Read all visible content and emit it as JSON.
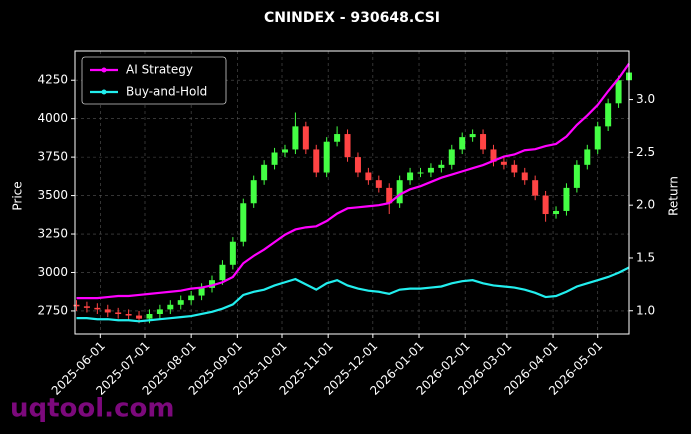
{
  "chart_data": {
    "type": "candlestick",
    "title": "CNINDEX - 930648.CSI",
    "y_label": "Price",
    "y2_label": "Return",
    "watermark": "uqtool.com",
    "x": [
      "2025-05-16",
      "2025-05-23",
      "2025-05-30",
      "2025-06-06",
      "2025-06-13",
      "2025-06-20",
      "2025-06-27",
      "2025-07-04",
      "2025-07-11",
      "2025-07-18",
      "2025-07-25",
      "2025-08-01",
      "2025-08-08",
      "2025-08-15",
      "2025-08-22",
      "2025-08-29",
      "2025-09-05",
      "2025-09-12",
      "2025-09-19",
      "2025-09-26",
      "2025-10-03",
      "2025-10-10",
      "2025-10-17",
      "2025-10-24",
      "2025-10-31",
      "2025-11-07",
      "2025-11-14",
      "2025-11-21",
      "2025-11-28",
      "2025-12-05",
      "2025-12-12",
      "2025-12-19",
      "2025-12-26",
      "2026-01-02",
      "2026-01-09",
      "2026-01-16",
      "2026-01-23",
      "2026-01-30",
      "2026-02-06",
      "2026-02-13",
      "2026-02-20",
      "2026-02-27",
      "2026-03-06",
      "2026-03-13",
      "2026-03-20",
      "2026-03-27",
      "2026-04-03",
      "2026-04-10",
      "2026-04-17",
      "2026-04-24",
      "2026-05-01",
      "2026-05-08",
      "2026-05-15",
      "2026-05-22"
    ],
    "open": [
      2790,
      2780,
      2770,
      2760,
      2740,
      2730,
      2720,
      2700,
      2730,
      2760,
      2790,
      2820,
      2850,
      2900,
      2950,
      3050,
      3200,
      3450,
      3600,
      3700,
      3780,
      3800,
      3950,
      3800,
      3650,
      3850,
      3900,
      3750,
      3650,
      3600,
      3550,
      3450,
      3600,
      3650,
      3650,
      3680,
      3700,
      3800,
      3880,
      3900,
      3800,
      3720,
      3700,
      3650,
      3600,
      3500,
      3380,
      3400,
      3550,
      3700,
      3800,
      3950,
      4100,
      4250
    ],
    "high": [
      2820,
      2810,
      2800,
      2790,
      2770,
      2760,
      2750,
      2760,
      2790,
      2820,
      2850,
      2880,
      2930,
      2980,
      3080,
      3230,
      3480,
      3630,
      3730,
      3810,
      3830,
      4040,
      3980,
      3830,
      3880,
      3950,
      3930,
      3780,
      3680,
      3630,
      3580,
      3630,
      3680,
      3680,
      3710,
      3730,
      3830,
      3910,
      3930,
      3930,
      3830,
      3750,
      3730,
      3680,
      3630,
      3530,
      3430,
      3580,
      3730,
      3830,
      3980,
      4130,
      4280,
      4350
    ],
    "low": [
      2750,
      2740,
      2730,
      2710,
      2700,
      2690,
      2670,
      2670,
      2700,
      2730,
      2760,
      2790,
      2820,
      2870,
      2920,
      3020,
      3170,
      3420,
      3570,
      3670,
      3750,
      3770,
      3770,
      3620,
      3620,
      3820,
      3720,
      3620,
      3570,
      3520,
      3380,
      3420,
      3570,
      3620,
      3620,
      3650,
      3670,
      3770,
      3850,
      3770,
      3690,
      3670,
      3620,
      3570,
      3470,
      3330,
      3350,
      3370,
      3520,
      3670,
      3770,
      3920,
      4070,
      4100
    ],
    "close": [
      2780,
      2770,
      2760,
      2740,
      2730,
      2720,
      2700,
      2730,
      2760,
      2790,
      2820,
      2850,
      2900,
      2950,
      3050,
      3200,
      3450,
      3600,
      3700,
      3780,
      3800,
      3950,
      3800,
      3650,
      3850,
      3900,
      3750,
      3650,
      3600,
      3550,
      3450,
      3600,
      3650,
      3650,
      3680,
      3700,
      3800,
      3880,
      3900,
      3800,
      3720,
      3700,
      3650,
      3600,
      3500,
      3380,
      3400,
      3550,
      3700,
      3800,
      3950,
      4100,
      4250,
      4300
    ],
    "up_color": "#44ff44",
    "down_color": "#ff4444",
    "series": [
      {
        "name": "AI Strategy",
        "color": "#ff00ff",
        "axis": "y2",
        "values": [
          1.12,
          1.12,
          1.12,
          1.13,
          1.14,
          1.14,
          1.15,
          1.16,
          1.17,
          1.18,
          1.19,
          1.21,
          1.22,
          1.24,
          1.27,
          1.32,
          1.45,
          1.52,
          1.58,
          1.65,
          1.72,
          1.77,
          1.79,
          1.8,
          1.85,
          1.92,
          1.97,
          1.98,
          1.99,
          2.0,
          2.02,
          2.1,
          2.15,
          2.18,
          2.22,
          2.26,
          2.29,
          2.32,
          2.35,
          2.38,
          2.42,
          2.46,
          2.48,
          2.52,
          2.53,
          2.56,
          2.58,
          2.65,
          2.76,
          2.85,
          2.95,
          3.08,
          3.2,
          3.34
        ]
      },
      {
        "name": "Buy-and-Hold",
        "color": "#22eeee",
        "axis": "y2",
        "values": [
          0.93,
          0.93,
          0.92,
          0.92,
          0.91,
          0.91,
          0.9,
          0.91,
          0.92,
          0.93,
          0.94,
          0.95,
          0.97,
          0.99,
          1.02,
          1.06,
          1.15,
          1.18,
          1.2,
          1.24,
          1.27,
          1.3,
          1.25,
          1.2,
          1.26,
          1.29,
          1.24,
          1.21,
          1.19,
          1.18,
          1.16,
          1.2,
          1.21,
          1.21,
          1.22,
          1.23,
          1.26,
          1.28,
          1.29,
          1.26,
          1.24,
          1.23,
          1.22,
          1.2,
          1.17,
          1.13,
          1.14,
          1.18,
          1.23,
          1.26,
          1.29,
          1.32,
          1.36,
          1.41
        ]
      }
    ],
    "xlim": [
      "2025-05-15",
      "2026-05-22"
    ],
    "xticks": [
      "2025-06-01",
      "2025-07-01",
      "2025-08-01",
      "2025-09-01",
      "2025-10-01",
      "2025-11-01",
      "2025-12-01",
      "2026-01-01",
      "2026-02-01",
      "2026-03-01",
      "2026-04-01",
      "2026-05-01"
    ],
    "ylim": [
      2600,
      4440
    ],
    "yticks": [
      2750,
      3000,
      3250,
      3500,
      3750,
      4000,
      4250
    ],
    "y2lim": [
      0.78,
      3.46
    ],
    "y2ticks": [
      {
        "value": 1,
        "label": "1.0"
      },
      1.5,
      {
        "value": 2,
        "label": "2.0"
      },
      2.5,
      {
        "value": 3,
        "label": "3.0"
      }
    ],
    "grid": true,
    "legend": "upper-left"
  }
}
